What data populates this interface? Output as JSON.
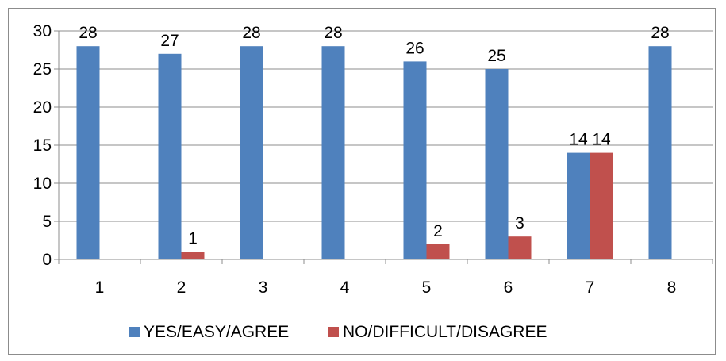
{
  "chart_data": {
    "type": "bar",
    "categories": [
      "1",
      "2",
      "3",
      "4",
      "5",
      "6",
      "7",
      "8"
    ],
    "series": [
      {
        "name": "YES/EASY/AGREE",
        "color": "#4f81bd",
        "values": [
          28,
          27,
          28,
          28,
          26,
          25,
          14,
          28
        ],
        "labels": [
          "28",
          "27",
          "28",
          "28",
          "26",
          "25",
          "14",
          "28"
        ]
      },
      {
        "name": "NO/DIFFICULT/DISAGREE",
        "color": "#c0504d",
        "values": [
          0,
          1,
          0,
          0,
          2,
          3,
          14,
          0
        ],
        "labels": [
          "",
          "1",
          "",
          "",
          "2",
          "3",
          "14",
          ""
        ]
      }
    ],
    "yticks": [
      "0",
      "5",
      "10",
      "15",
      "20",
      "25",
      "30"
    ],
    "ylim": [
      0,
      30
    ],
    "grid": true,
    "legend_position": "bottom"
  }
}
